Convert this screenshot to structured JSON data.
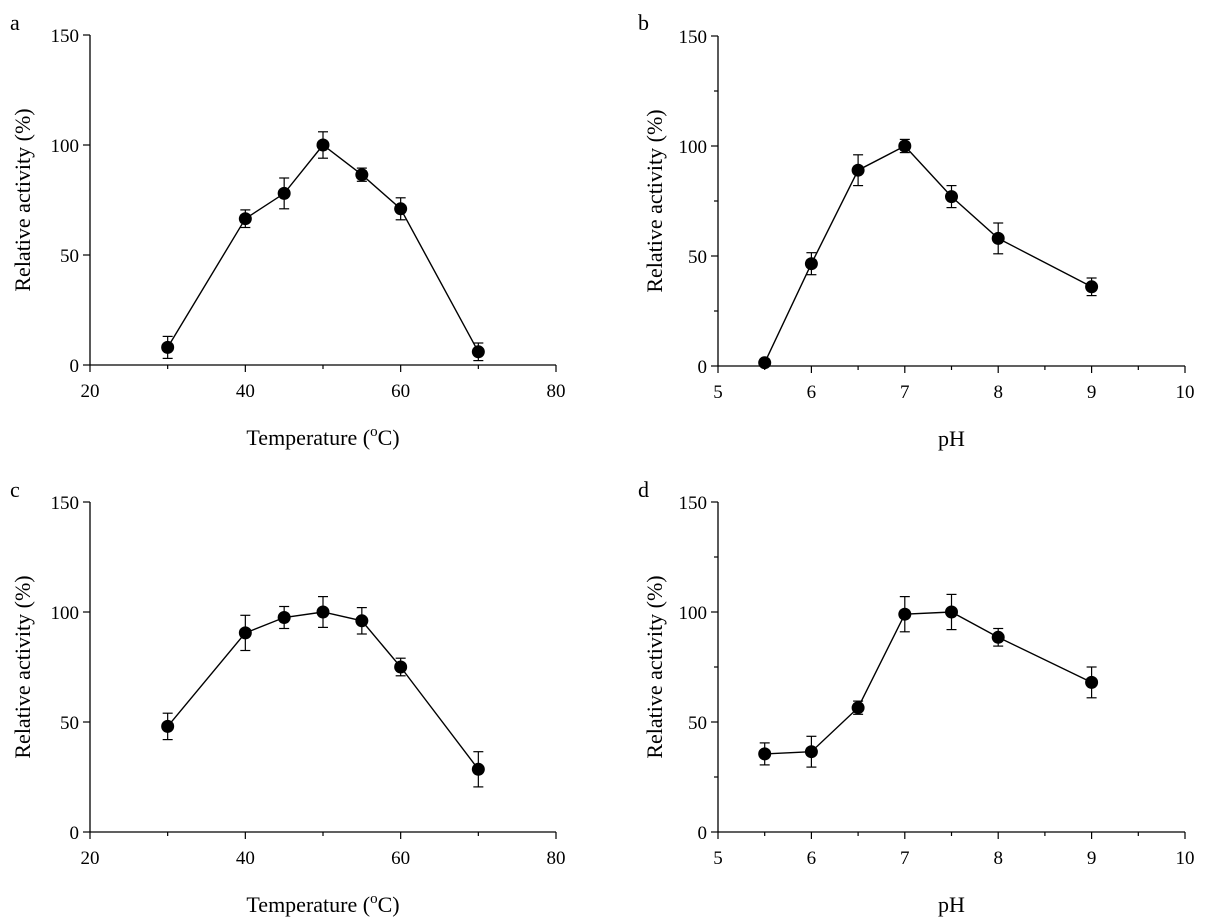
{
  "chart_data": [
    {
      "panel_label": "a",
      "type": "line",
      "xlabel": "Temperature (",
      "xlabel_sup": "o",
      "xlabel_end": "C)",
      "ylabel": "Relative activity (%)",
      "xlim": [
        20,
        80
      ],
      "ylim": [
        0,
        150
      ],
      "xticks": [
        20,
        40,
        60,
        80
      ],
      "xminor": [
        30,
        50,
        70
      ],
      "yticks": [
        0,
        50,
        100,
        150
      ],
      "yminor": [],
      "x": [
        30,
        40,
        45,
        50,
        55,
        60,
        70
      ],
      "y": [
        8,
        66.5,
        78,
        100,
        86.5,
        71,
        6
      ],
      "err": [
        5,
        4,
        7,
        6,
        3,
        5,
        4
      ]
    },
    {
      "panel_label": "b",
      "type": "line",
      "xlabel": "pH",
      "xlabel_sup": "",
      "xlabel_end": "",
      "ylabel": "Relative activity (%)",
      "xlim": [
        5,
        10
      ],
      "ylim": [
        0,
        150
      ],
      "xticks": [
        5,
        6,
        7,
        8,
        9,
        10
      ],
      "xminor": [
        5.5,
        6.5,
        7.5,
        8.5,
        9.5
      ],
      "yticks": [
        0,
        50,
        100,
        150
      ],
      "yminor": [
        25,
        75,
        125
      ],
      "x": [
        5.5,
        6,
        6.5,
        7,
        7.5,
        8,
        9
      ],
      "y": [
        1.5,
        46.5,
        89,
        100,
        77,
        58,
        36
      ],
      "err": [
        1,
        5,
        7,
        3,
        5,
        7,
        4
      ]
    },
    {
      "panel_label": "c",
      "type": "line",
      "xlabel": "Temperature (",
      "xlabel_sup": "o",
      "xlabel_end": "C)",
      "ylabel": "Relative activity (%)",
      "xlim": [
        20,
        80
      ],
      "ylim": [
        0,
        150
      ],
      "xticks": [
        20,
        40,
        60,
        80
      ],
      "xminor": [
        30,
        50,
        70
      ],
      "yticks": [
        0,
        50,
        100,
        150
      ],
      "yminor": [],
      "x": [
        30,
        40,
        45,
        50,
        55,
        60,
        70
      ],
      "y": [
        48,
        90.5,
        97.5,
        100,
        96,
        75,
        28.5
      ],
      "err": [
        6,
        8,
        5,
        7,
        6,
        4,
        8
      ]
    },
    {
      "panel_label": "d",
      "type": "line",
      "xlabel": "pH",
      "xlabel_sup": "",
      "xlabel_end": "",
      "ylabel": "Relative activity (%)",
      "xlim": [
        5,
        10
      ],
      "ylim": [
        0,
        150
      ],
      "xticks": [
        5,
        6,
        7,
        8,
        9,
        10
      ],
      "xminor": [
        5.5,
        6.5,
        7.5,
        8.5,
        9.5
      ],
      "yticks": [
        0,
        50,
        100,
        150
      ],
      "yminor": [
        25,
        75,
        125
      ],
      "x": [
        5.5,
        6,
        6.5,
        7,
        7.5,
        8,
        9
      ],
      "y": [
        35.5,
        36.5,
        56.5,
        99,
        100,
        88.5,
        68
      ],
      "err": [
        5,
        7,
        3,
        8,
        8,
        4,
        7
      ]
    }
  ]
}
